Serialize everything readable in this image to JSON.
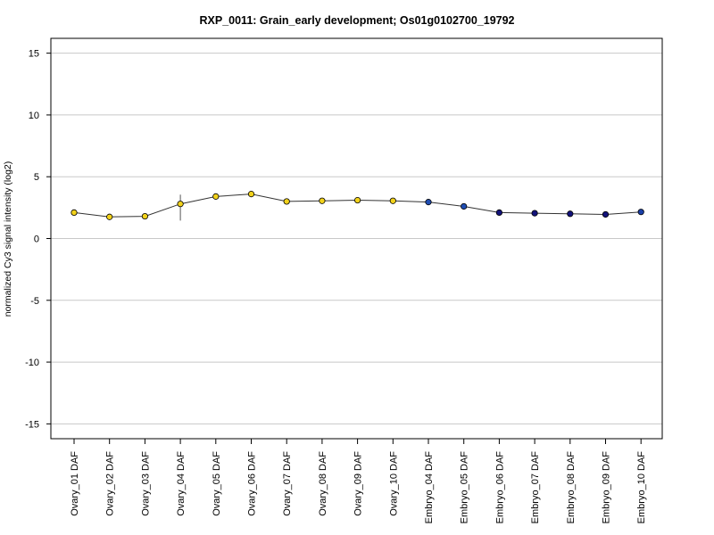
{
  "chart_data": {
    "type": "line",
    "title": "RXP_0011: Grain_early development; Os01g0102700_19792",
    "xlabel": "",
    "ylabel": "normalized Cy3 signal intensity (log2)",
    "ylim": [
      -16.2,
      16.2
    ],
    "yticks": [
      -15,
      -10,
      -5,
      0,
      5,
      10,
      15
    ],
    "grid": true,
    "categories": [
      "Ovary_01 DAF",
      "Ovary_02 DAF",
      "Ovary_03 DAF",
      "Ovary_04 DAF",
      "Ovary_05 DAF",
      "Ovary_06 DAF",
      "Ovary_07 DAF",
      "Ovary_08 DAF",
      "Ovary_09 DAF",
      "Ovary_10 DAF",
      "Embryo_04 DAF",
      "Embryo_05 DAF",
      "Embryo_06 DAF",
      "Embryo_07 DAF",
      "Embryo_08 DAF",
      "Embryo_09 DAF",
      "Embryo_10 DAF"
    ],
    "values": [
      2.1,
      1.75,
      1.8,
      2.8,
      3.4,
      3.6,
      3.0,
      3.05,
      3.1,
      3.05,
      2.95,
      2.6,
      2.1,
      2.05,
      2.0,
      1.95,
      2.15
    ],
    "error_low": [
      2.0,
      1.55,
      1.7,
      1.45,
      3.25,
      3.5,
      2.9,
      2.85,
      2.95,
      2.9,
      2.85,
      2.5,
      2.0,
      1.9,
      1.9,
      1.85,
      2.05
    ],
    "error_high": [
      2.2,
      1.95,
      1.9,
      3.55,
      3.55,
      3.7,
      3.1,
      3.25,
      3.25,
      3.2,
      3.05,
      2.7,
      2.2,
      2.2,
      2.1,
      2.05,
      2.25
    ],
    "point_colors": [
      "#f2d21b",
      "#f2d21b",
      "#f2d21b",
      "#f2d21b",
      "#f2d21b",
      "#f2d21b",
      "#f2d21b",
      "#f2d21b",
      "#f2d21b",
      "#f2d21b",
      "#1f4db3",
      "#1f4db3",
      "#12127a",
      "#12127a",
      "#12127a",
      "#12127a",
      "#1a3fa8"
    ],
    "line_color": "#333333",
    "grid_color": "#c8c8c8"
  }
}
